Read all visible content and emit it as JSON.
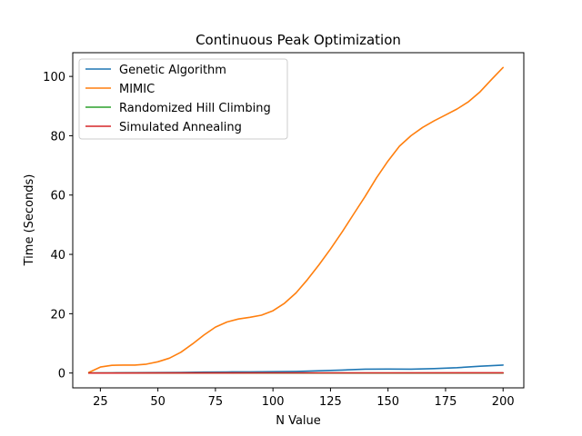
{
  "chart_data": {
    "type": "line",
    "title": "Continuous Peak Optimization",
    "xlabel": "N Value",
    "ylabel": "Time (Seconds)",
    "xlim": [
      13,
      209
    ],
    "ylim": [
      -5,
      108
    ],
    "xticks": [
      25,
      50,
      75,
      100,
      125,
      150,
      175,
      200
    ],
    "yticks": [
      0,
      20,
      40,
      60,
      80,
      100
    ],
    "grid": false,
    "legend_position": "top-left",
    "series": [
      {
        "name": "Genetic Algorithm",
        "color": "#1f77b4",
        "x": [
          20,
          30,
          40,
          50,
          60,
          70,
          80,
          90,
          100,
          110,
          120,
          130,
          140,
          150,
          160,
          170,
          180,
          190,
          200
        ],
        "y": [
          0.0,
          0.05,
          0.1,
          0.15,
          0.2,
          0.3,
          0.35,
          0.4,
          0.45,
          0.55,
          0.75,
          1.0,
          1.3,
          1.35,
          1.3,
          1.5,
          1.8,
          2.3,
          2.7
        ]
      },
      {
        "name": "MIMIC",
        "color": "#ff7f0e",
        "x": [
          20,
          25,
          30,
          35,
          40,
          45,
          50,
          55,
          60,
          65,
          70,
          75,
          80,
          85,
          90,
          95,
          100,
          105,
          110,
          115,
          120,
          125,
          130,
          135,
          140,
          145,
          150,
          155,
          160,
          165,
          170,
          175,
          180,
          185,
          190,
          195,
          200
        ],
        "y": [
          0.2,
          2.0,
          2.6,
          2.7,
          2.7,
          3.0,
          3.8,
          5.0,
          7.0,
          9.8,
          12.8,
          15.5,
          17.2,
          18.2,
          18.8,
          19.5,
          21.0,
          23.5,
          27.0,
          31.5,
          36.5,
          41.8,
          47.5,
          53.5,
          59.5,
          65.8,
          71.5,
          76.5,
          80.0,
          82.8,
          85.0,
          87.0,
          89.0,
          91.5,
          94.8,
          99.0,
          103.0
        ]
      },
      {
        "name": "Randomized Hill Climbing",
        "color": "#2ca02c",
        "x": [
          20,
          50,
          100,
          150,
          200
        ],
        "y": [
          0.0,
          0.0,
          0.0,
          0.0,
          0.0
        ]
      },
      {
        "name": "Simulated Annealing",
        "color": "#d62728",
        "x": [
          20,
          50,
          100,
          150,
          200
        ],
        "y": [
          0.0,
          0.02,
          0.04,
          0.06,
          0.07
        ]
      }
    ]
  }
}
